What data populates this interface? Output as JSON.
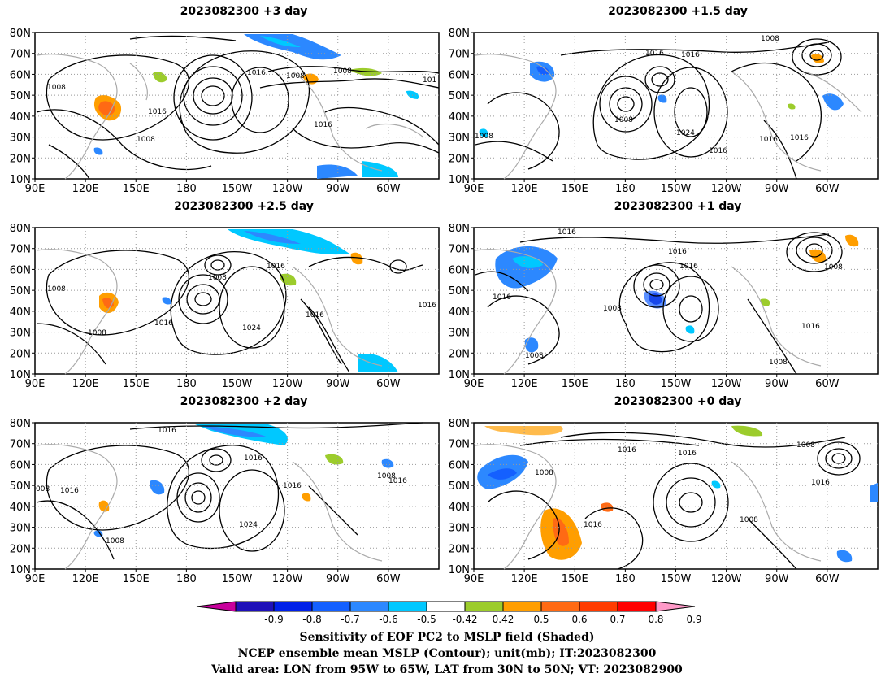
{
  "panels": [
    {
      "title": "2023082300 +3 day",
      "contours": [
        "1008",
        "1016",
        "1008",
        "1008",
        "1016",
        "1008",
        "1016",
        "1008",
        "101"
      ]
    },
    {
      "title": "2023082300 +1.5 day",
      "contours": [
        "1008",
        "1016",
        "1016",
        "1008",
        "1008",
        "1024",
        "1016",
        "1016",
        "1016"
      ]
    },
    {
      "title": "2023082300 +2.5 day",
      "contours": [
        "1008",
        "1008",
        "1016",
        "1016",
        "1008",
        "1024",
        "1016",
        "1016"
      ]
    },
    {
      "title": "2023082300 +1 day",
      "contours": [
        "1016",
        "1016",
        "1016",
        "1016",
        "1008",
        "1008",
        "1008",
        "1016",
        "1008"
      ]
    },
    {
      "title": "2023082300 +2 day",
      "contours": [
        "1016",
        "008",
        "1016",
        "1016",
        "1016",
        "1008",
        "1016",
        "1024",
        "1008"
      ]
    },
    {
      "title": "2023082300 +0 day",
      "contours": [
        "1016",
        "1016",
        "1008",
        "1008",
        "1016",
        "1008",
        "1016"
      ]
    }
  ],
  "axes": {
    "y_ticks": [
      "80N",
      "70N",
      "60N",
      "50N",
      "40N",
      "30N",
      "20N",
      "10N"
    ],
    "x_ticks": [
      "90E",
      "120E",
      "150E",
      "180",
      "150W",
      "120W",
      "90W",
      "60W"
    ]
  },
  "colorbar": {
    "ticks": [
      "-0.9",
      "-0.8",
      "-0.7",
      "-0.6",
      "-0.5",
      "-0.42",
      "0.42",
      "0.5",
      "0.6",
      "0.7",
      "0.8",
      "0.9"
    ],
    "colors": [
      "#c8009c",
      "#1e10b8",
      "#0020e8",
      "#1460ff",
      "#2c88ff",
      "#00c8ff",
      "#ffffff",
      "#9ccc2c",
      "#ff9e00",
      "#ff6a14",
      "#ff3c00",
      "#ff0000",
      "#ff9ac8"
    ]
  },
  "caption": {
    "line1": "Sensitivity of EOF PC2 to MSLP field (Shaded)",
    "line2": "NCEP ensemble mean MSLP (Contour); unit(mb); IT:2023082300",
    "line3": "Valid area: LON from 95W to 65W, LAT from 30N to 50N; VT: 2023082900"
  }
}
